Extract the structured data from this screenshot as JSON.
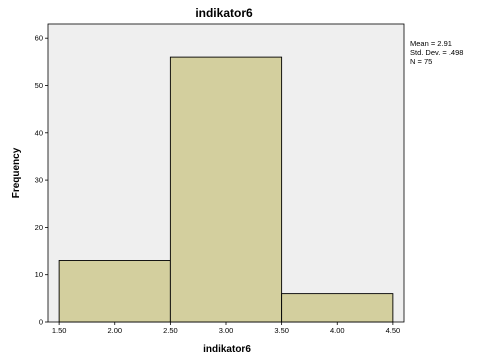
{
  "chart_data": {
    "type": "bar",
    "title": "indikator6",
    "xlabel": "indikator6",
    "ylabel": "Frequency",
    "bins": [
      {
        "from": 1.5,
        "to": 2.5,
        "value": 13
      },
      {
        "from": 2.5,
        "to": 3.5,
        "value": 56
      },
      {
        "from": 3.5,
        "to": 4.5,
        "value": 6
      }
    ],
    "xlim": [
      1.4,
      4.6
    ],
    "ylim": [
      0,
      63
    ],
    "x_ticks": [
      "1.50",
      "2.00",
      "2.50",
      "3.00",
      "3.50",
      "4.00",
      "4.50"
    ],
    "y_ticks": [
      "0",
      "10",
      "20",
      "30",
      "40",
      "50",
      "60"
    ],
    "grid": false,
    "stats": {
      "mean": "Mean = 2.91",
      "std_dev": "Std. Dev. = .498",
      "n": "N = 75"
    },
    "colors": {
      "plot_background": "#efefef",
      "bar_fill": "#d3cf9e",
      "bar_stroke": "#000000"
    }
  }
}
